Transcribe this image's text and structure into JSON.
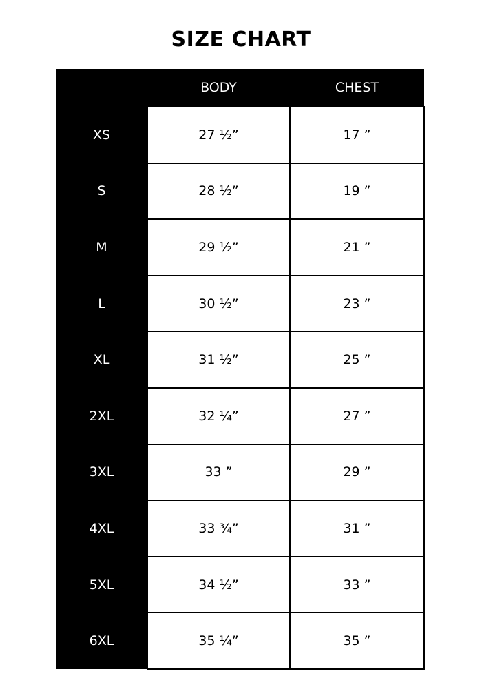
{
  "title": "SIZE CHART",
  "headers": [
    "",
    "BODY",
    "CHEST"
  ],
  "rows": [
    {
      "size": "XS",
      "body": "27 ½”",
      "chest": "17 ”"
    },
    {
      "size": "S",
      "body": "28 ½”",
      "chest": "19 ”"
    },
    {
      "size": "M",
      "body": "29 ½”",
      "chest": "21 ”"
    },
    {
      "size": "L",
      "body": "30 ½”",
      "chest": "23 ”"
    },
    {
      "size": "XL",
      "body": "31 ½”",
      "chest": "25 ”"
    },
    {
      "size": "2XL",
      "body": "32 ¼”",
      "chest": "27 ”"
    },
    {
      "size": "3XL",
      "body": "33 ”",
      "chest": "29 ”"
    },
    {
      "size": "4XL",
      "body": "33 ¾”",
      "chest": "31 ”"
    },
    {
      "size": "5XL",
      "body": "34 ½”",
      "chest": "33 ”"
    },
    {
      "size": "6XL",
      "body": "35 ¼”",
      "chest": "35 ”"
    }
  ]
}
